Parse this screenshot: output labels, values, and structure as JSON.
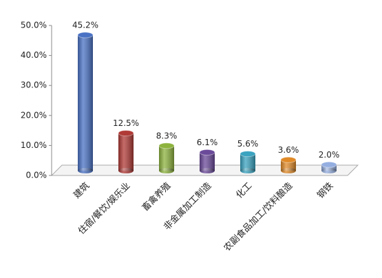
{
  "chart_data": {
    "type": "bar",
    "categories": [
      "建筑",
      "住宿/餐饮/娱乐业",
      "畜禽养殖",
      "非金属加工制造",
      "化工",
      "农副食品加工/饮料酿造",
      "钢铁"
    ],
    "values": [
      45.2,
      12.5,
      8.3,
      6.1,
      5.6,
      3.6,
      2.0
    ],
    "value_labels": [
      "45.2%",
      "12.5%",
      "8.3%",
      "6.1%",
      "5.6%",
      "3.6%",
      "2.0%"
    ],
    "colors": [
      "#4a72c4",
      "#b03a36",
      "#8db33e",
      "#6b4a9a",
      "#3aa3c0",
      "#e08a28",
      "#94aee0"
    ],
    "ylim": [
      0,
      50
    ],
    "yticks": [
      {
        "value": 0,
        "label": "0.0%"
      },
      {
        "value": 10,
        "label": "10.0%"
      },
      {
        "value": 20,
        "label": "20.0%"
      },
      {
        "value": 30,
        "label": "30.0%"
      },
      {
        "value": 40,
        "label": "40.0%"
      },
      {
        "value": 50,
        "label": "50.0%"
      }
    ]
  }
}
